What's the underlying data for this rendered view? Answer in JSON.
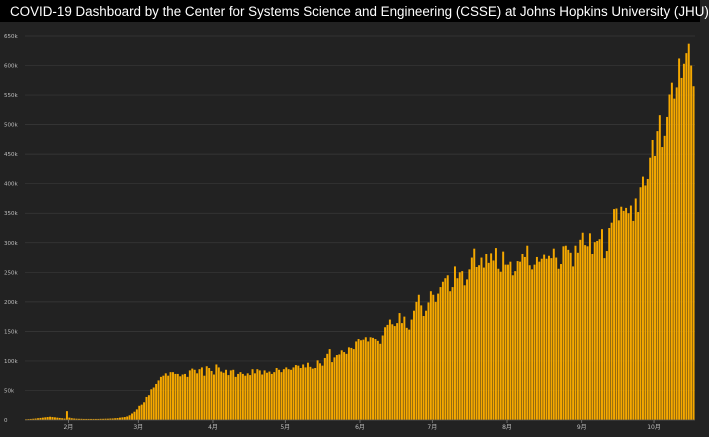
{
  "header": {
    "title": "COVID-19 Dashboard by the Center for Systems Science and Engineering (CSSE) at Johns Hopkins University (JHU)",
    "logo_icon": "jhu-shield-logo",
    "background": "#000000",
    "text_color": "#ffffff"
  },
  "chart_data": {
    "type": "bar",
    "title": "",
    "xlabel": "",
    "ylabel": "",
    "bar_color": "#f5a800",
    "background": "#222222",
    "grid": true,
    "grid_color": "#3a3a3a",
    "ylim": [
      0,
      650000
    ],
    "y_ticks": [
      {
        "value": 0,
        "label": "0"
      },
      {
        "value": 50000,
        "label": "50k"
      },
      {
        "value": 100000,
        "label": "100k"
      },
      {
        "value": 150000,
        "label": "150k"
      },
      {
        "value": 200000,
        "label": "200k"
      },
      {
        "value": 250000,
        "label": "250k"
      },
      {
        "value": 300000,
        "label": "300k"
      },
      {
        "value": 350000,
        "label": "350k"
      },
      {
        "value": 400000,
        "label": "400k"
      },
      {
        "value": 450000,
        "label": "450k"
      },
      {
        "value": 500000,
        "label": "500k"
      },
      {
        "value": 550000,
        "label": "550k"
      },
      {
        "value": 600000,
        "label": "600k"
      },
      {
        "value": 650000,
        "label": "650k"
      }
    ],
    "x_ticks": [
      {
        "index": 18,
        "label": "2月"
      },
      {
        "index": 47,
        "label": "3月"
      },
      {
        "index": 78,
        "label": "4月"
      },
      {
        "index": 108,
        "label": "5月"
      },
      {
        "index": 139,
        "label": "6月"
      },
      {
        "index": 169,
        "label": "7月"
      },
      {
        "index": 200,
        "label": "8月"
      },
      {
        "index": 231,
        "label": "9月"
      },
      {
        "index": 261,
        "label": "10月"
      }
    ],
    "values": [
      1200,
      1500,
      1800,
      2100,
      2500,
      3000,
      3500,
      4000,
      4500,
      5000,
      5500,
      5000,
      4500,
      4000,
      3500,
      3000,
      2500,
      15000,
      4000,
      3000,
      2500,
      2200,
      2000,
      2000,
      1800,
      1800,
      1800,
      1800,
      1800,
      1800,
      1800,
      2000,
      2000,
      2200,
      2200,
      2500,
      2600,
      3000,
      3300,
      4000,
      4500,
      5000,
      6000,
      8000,
      11000,
      14000,
      18000,
      24000,
      26000,
      30000,
      39000,
      42000,
      52000,
      55000,
      61000,
      67000,
      73000,
      75000,
      79000,
      75000,
      81000,
      81000,
      78000,
      78000,
      74000,
      77000,
      78000,
      73000,
      84000,
      87000,
      85000,
      79000,
      86000,
      89000,
      75000,
      91000,
      88000,
      83000,
      77000,
      94000,
      89000,
      82000,
      80000,
      85000,
      76000,
      84000,
      85000,
      73000,
      78000,
      81000,
      78000,
      75000,
      79000,
      76000,
      86000,
      79000,
      86000,
      84000,
      77000,
      84000,
      80000,
      82000,
      78000,
      81000,
      88000,
      85000,
      81000,
      86000,
      89000,
      86000,
      85000,
      89000,
      93000,
      92000,
      88000,
      94000,
      89000,
      97000,
      90000,
      87000,
      88000,
      101000,
      96000,
      92000,
      105000,
      112000,
      120000,
      98000,
      106000,
      110000,
      111000,
      118000,
      115000,
      112000,
      123000,
      122000,
      120000,
      133000,
      137000,
      135000,
      136000,
      140000,
      133000,
      140000,
      139000,
      137000,
      134000,
      129000,
      143000,
      157000,
      161000,
      170000,
      162000,
      159000,
      164000,
      181000,
      164000,
      175000,
      156000,
      153000,
      170000,
      185000,
      200000,
      212000,
      194000,
      176000,
      185000,
      199000,
      218000,
      212000,
      200000,
      214000,
      225000,
      234000,
      240000,
      245000,
      218000,
      225000,
      260000,
      240000,
      250000,
      252000,
      228000,
      238000,
      255000,
      275000,
      290000,
      259000,
      262000,
      275000,
      258000,
      281000,
      266000,
      282000,
      270000,
      291000,
      256000,
      251000,
      285000,
      263000,
      263000,
      268000,
      245000,
      252000,
      269000,
      268000,
      281000,
      276000,
      295000,
      262000,
      255000,
      263000,
      276000,
      268000,
      273000,
      280000,
      273000,
      278000,
      274000,
      290000,
      275000,
      256000,
      264000,
      294000,
      295000,
      288000,
      283000,
      260000,
      295000,
      283000,
      305000,
      317000,
      296000,
      294000,
      316000,
      281000,
      301000,
      303000,
      306000,
      323000,
      274000,
      286000,
      325000,
      334000,
      357000,
      358000,
      338000,
      361000,
      354000,
      359000,
      350000,
      363000,
      337000,
      375000,
      352000,
      394000,
      412000,
      397000,
      408000,
      444000,
      474000,
      447000,
      489000,
      516000,
      462000,
      481000,
      513000,
      551000,
      571000,
      544000,
      563000,
      612000,
      579000,
      603000,
      621000,
      637000,
      600000,
      565000
    ]
  }
}
